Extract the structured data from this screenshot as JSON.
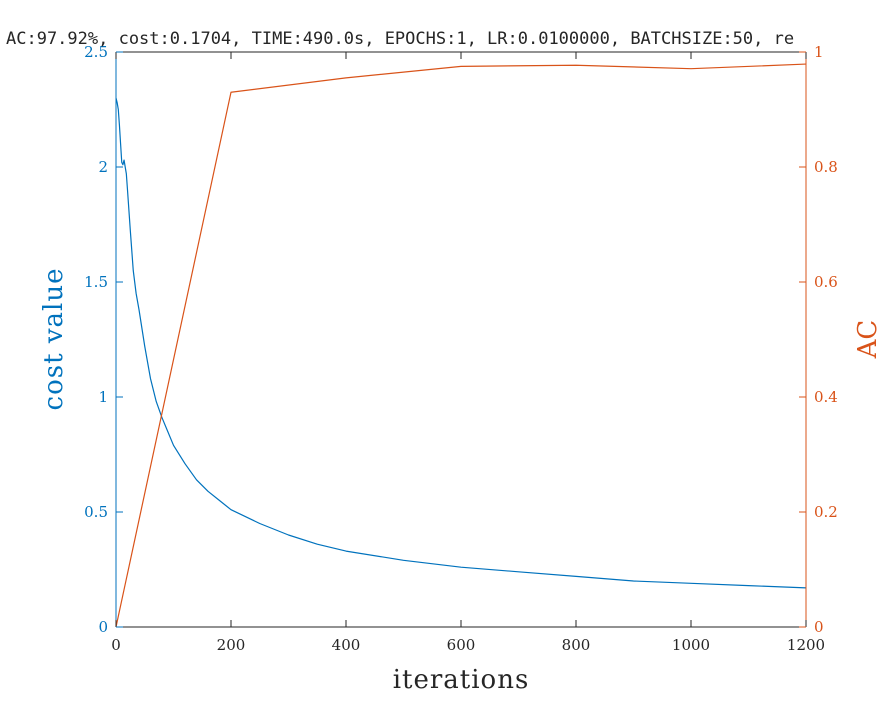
{
  "chart_data": {
    "type": "line",
    "title": "AC:97.92%, cost:0.1704, TIME:490.0s, EPOCHS:1, LR:0.0100000, BATCHSIZE:50, re",
    "xlabel": "iterations",
    "ylabel_left": "cost value",
    "ylabel_right": "AC",
    "xlim": [
      0,
      1200
    ],
    "ylim_left": [
      0,
      2.5
    ],
    "ylim_right": [
      0,
      1
    ],
    "x_ticks": [
      "0",
      "200",
      "400",
      "600",
      "800",
      "1000",
      "1200"
    ],
    "y_ticks_left": [
      "0",
      "0.5",
      "1",
      "1.5",
      "2",
      "2.5"
    ],
    "y_ticks_right": [
      "0",
      "0.2",
      "0.4",
      "0.6",
      "0.8",
      "1"
    ],
    "grid": false,
    "colors": {
      "left": "#0072BD",
      "right": "#D95319",
      "axis": "#262626"
    },
    "series": [
      {
        "axis": "left",
        "x": [
          0,
          2,
          4,
          6,
          8,
          10,
          12,
          14,
          16,
          18,
          20,
          25,
          30,
          35,
          40,
          50,
          60,
          70,
          80,
          90,
          100,
          120,
          140,
          160,
          180,
          200,
          250,
          300,
          350,
          400,
          500,
          600,
          700,
          800,
          900,
          1000,
          1100,
          1200
        ],
        "values": [
          2.3,
          2.28,
          2.25,
          2.18,
          2.1,
          2.02,
          2.01,
          2.03,
          2.0,
          1.97,
          1.9,
          1.72,
          1.55,
          1.45,
          1.38,
          1.22,
          1.08,
          0.98,
          0.91,
          0.85,
          0.79,
          0.71,
          0.64,
          0.59,
          0.55,
          0.51,
          0.45,
          0.4,
          0.36,
          0.33,
          0.29,
          0.26,
          0.24,
          0.22,
          0.2,
          0.19,
          0.18,
          0.17
        ]
      },
      {
        "axis": "right",
        "x": [
          0,
          200,
          400,
          600,
          800,
          1000,
          1200
        ],
        "values": [
          0.0,
          0.93,
          0.955,
          0.975,
          0.977,
          0.971,
          0.979
        ]
      }
    ]
  }
}
